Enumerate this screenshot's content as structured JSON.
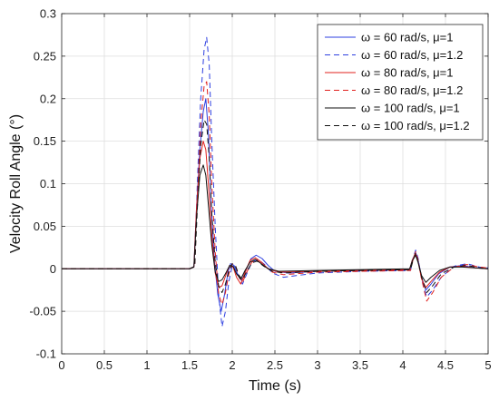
{
  "chart_data": {
    "type": "line",
    "title": "",
    "xlabel": "Time (s)",
    "ylabel": "Velocity Roll Angle (°)",
    "xlim": [
      0,
      5
    ],
    "ylim": [
      -0.1,
      0.3
    ],
    "xticks": [
      0,
      0.5,
      1,
      1.5,
      2,
      2.5,
      3,
      3.5,
      4,
      4.5,
      5
    ],
    "yticks": [
      -0.1,
      -0.05,
      0,
      0.05,
      0.1,
      0.15,
      0.2,
      0.25,
      0.3
    ],
    "xtick_labels": [
      "0",
      "0.5",
      "1",
      "1.5",
      "2",
      "2.5",
      "3",
      "3.5",
      "4",
      "4.5",
      "5"
    ],
    "ytick_labels": [
      "-0.1",
      "-0.05",
      "0",
      "0.05",
      "0.1",
      "0.15",
      "0.2",
      "0.25",
      "0.3"
    ],
    "grid": true,
    "legend_position": "top-right",
    "series": [
      {
        "name": "ω = 60 rad/s, μ=1",
        "color": "#2d3fe0",
        "dash": "solid",
        "points": [
          [
            0,
            0
          ],
          [
            1.5,
            0
          ],
          [
            1.55,
            0.002
          ],
          [
            1.58,
            0.07
          ],
          [
            1.62,
            0.14
          ],
          [
            1.66,
            0.185
          ],
          [
            1.69,
            0.2
          ],
          [
            1.72,
            0.16
          ],
          [
            1.75,
            0.08
          ],
          [
            1.79,
            0.01
          ],
          [
            1.83,
            -0.03
          ],
          [
            1.87,
            -0.05
          ],
          [
            1.91,
            -0.03
          ],
          [
            1.95,
            -0.004
          ],
          [
            1.98,
            0.006
          ],
          [
            2.02,
            0.004
          ],
          [
            2.07,
            -0.008
          ],
          [
            2.11,
            -0.014
          ],
          [
            2.16,
            -0.002
          ],
          [
            2.22,
            0.012
          ],
          [
            2.28,
            0.016
          ],
          [
            2.35,
            0.012
          ],
          [
            2.42,
            0.004
          ],
          [
            2.5,
            -0.003
          ],
          [
            2.65,
            -0.005
          ],
          [
            3.0,
            -0.003
          ],
          [
            3.5,
            -0.002
          ],
          [
            4.08,
            -0.001
          ],
          [
            4.11,
            0.01
          ],
          [
            4.15,
            0.019
          ],
          [
            4.18,
            0.01
          ],
          [
            4.22,
            -0.01
          ],
          [
            4.27,
            -0.025
          ],
          [
            4.33,
            -0.018
          ],
          [
            4.42,
            -0.006
          ],
          [
            4.55,
            0.002
          ],
          [
            4.7,
            0.004
          ],
          [
            4.85,
            0.001
          ],
          [
            5,
            0
          ]
        ]
      },
      {
        "name": "ω = 60 rad/s, μ=1.2",
        "color": "#2d3fe0",
        "dash": "dashed",
        "points": [
          [
            0,
            0
          ],
          [
            1.5,
            0
          ],
          [
            1.56,
            0.003
          ],
          [
            1.59,
            0.1
          ],
          [
            1.63,
            0.2
          ],
          [
            1.67,
            0.258
          ],
          [
            1.7,
            0.272
          ],
          [
            1.73,
            0.24
          ],
          [
            1.76,
            0.15
          ],
          [
            1.8,
            0.05
          ],
          [
            1.84,
            -0.03
          ],
          [
            1.88,
            -0.068
          ],
          [
            1.92,
            -0.05
          ],
          [
            1.96,
            -0.015
          ],
          [
            2.0,
            0.004
          ],
          [
            2.04,
            0.002
          ],
          [
            2.08,
            -0.01
          ],
          [
            2.12,
            -0.018
          ],
          [
            2.17,
            -0.006
          ],
          [
            2.23,
            0.008
          ],
          [
            2.3,
            0.011
          ],
          [
            2.38,
            0.005
          ],
          [
            2.47,
            -0.005
          ],
          [
            2.6,
            -0.01
          ],
          [
            2.75,
            -0.008
          ],
          [
            3.0,
            -0.005
          ],
          [
            3.5,
            -0.003
          ],
          [
            4.09,
            -0.002
          ],
          [
            4.12,
            0.012
          ],
          [
            4.15,
            0.022
          ],
          [
            4.18,
            0.012
          ],
          [
            4.22,
            -0.012
          ],
          [
            4.28,
            -0.033
          ],
          [
            4.35,
            -0.025
          ],
          [
            4.45,
            -0.01
          ],
          [
            4.6,
            0.003
          ],
          [
            4.75,
            0.006
          ],
          [
            4.9,
            0.002
          ],
          [
            5,
            0.001
          ]
        ]
      },
      {
        "name": "ω = 80 rad/s, μ=1",
        "color": "#e0201d",
        "dash": "solid",
        "points": [
          [
            0,
            0
          ],
          [
            1.5,
            0
          ],
          [
            1.55,
            0.002
          ],
          [
            1.58,
            0.07
          ],
          [
            1.62,
            0.13
          ],
          [
            1.66,
            0.15
          ],
          [
            1.69,
            0.14
          ],
          [
            1.72,
            0.1
          ],
          [
            1.76,
            0.04
          ],
          [
            1.8,
            -0.005
          ],
          [
            1.84,
            -0.022
          ],
          [
            1.88,
            -0.02
          ],
          [
            1.93,
            -0.006
          ],
          [
            1.97,
            0.004
          ],
          [
            2.01,
            0.002
          ],
          [
            2.05,
            -0.01
          ],
          [
            2.1,
            -0.018
          ],
          [
            2.15,
            -0.004
          ],
          [
            2.21,
            0.01
          ],
          [
            2.27,
            0.013
          ],
          [
            2.34,
            0.008
          ],
          [
            2.42,
            0.0
          ],
          [
            2.55,
            -0.004
          ],
          [
            3.0,
            -0.003
          ],
          [
            3.5,
            -0.002
          ],
          [
            4.08,
            -0.001
          ],
          [
            4.11,
            0.01
          ],
          [
            4.15,
            0.018
          ],
          [
            4.18,
            0.008
          ],
          [
            4.22,
            -0.012
          ],
          [
            4.27,
            -0.022
          ],
          [
            4.33,
            -0.015
          ],
          [
            4.43,
            -0.004
          ],
          [
            4.55,
            0.002
          ],
          [
            4.7,
            0.003
          ],
          [
            4.85,
            0.001
          ],
          [
            5,
            0
          ]
        ]
      },
      {
        "name": "ω = 80 rad/s, μ=1.2",
        "color": "#e0201d",
        "dash": "dashed",
        "points": [
          [
            0,
            0
          ],
          [
            1.5,
            0
          ],
          [
            1.56,
            0.003
          ],
          [
            1.59,
            0.08
          ],
          [
            1.63,
            0.17
          ],
          [
            1.67,
            0.215
          ],
          [
            1.7,
            0.22
          ],
          [
            1.73,
            0.18
          ],
          [
            1.76,
            0.1
          ],
          [
            1.8,
            0.02
          ],
          [
            1.84,
            -0.03
          ],
          [
            1.88,
            -0.042
          ],
          [
            1.92,
            -0.028
          ],
          [
            1.96,
            -0.006
          ],
          [
            2.0,
            0.006
          ],
          [
            2.04,
            0.003
          ],
          [
            2.08,
            -0.01
          ],
          [
            2.12,
            -0.016
          ],
          [
            2.17,
            -0.004
          ],
          [
            2.23,
            0.008
          ],
          [
            2.29,
            0.01
          ],
          [
            2.37,
            0.004
          ],
          [
            2.47,
            -0.004
          ],
          [
            2.6,
            -0.007
          ],
          [
            3.0,
            -0.004
          ],
          [
            3.5,
            -0.003
          ],
          [
            4.09,
            -0.002
          ],
          [
            4.12,
            0.011
          ],
          [
            4.15,
            0.02
          ],
          [
            4.18,
            0.01
          ],
          [
            4.22,
            -0.012
          ],
          [
            4.28,
            -0.038
          ],
          [
            4.35,
            -0.028
          ],
          [
            4.45,
            -0.01
          ],
          [
            4.6,
            0.002
          ],
          [
            4.75,
            0.005
          ],
          [
            4.9,
            0.002
          ],
          [
            5,
            0.001
          ]
        ]
      },
      {
        "name": "ω = 100 rad/s, μ=1",
        "color": "#111111",
        "dash": "solid",
        "points": [
          [
            0,
            0
          ],
          [
            1.5,
            0
          ],
          [
            1.55,
            0.002
          ],
          [
            1.58,
            0.06
          ],
          [
            1.62,
            0.11
          ],
          [
            1.66,
            0.122
          ],
          [
            1.69,
            0.11
          ],
          [
            1.72,
            0.075
          ],
          [
            1.76,
            0.028
          ],
          [
            1.8,
            -0.004
          ],
          [
            1.84,
            -0.015
          ],
          [
            1.88,
            -0.013
          ],
          [
            1.93,
            -0.004
          ],
          [
            1.97,
            0.004
          ],
          [
            2.01,
            0.003
          ],
          [
            2.05,
            -0.006
          ],
          [
            2.1,
            -0.012
          ],
          [
            2.15,
            -0.002
          ],
          [
            2.21,
            0.008
          ],
          [
            2.27,
            0.011
          ],
          [
            2.34,
            0.006
          ],
          [
            2.42,
            0.0
          ],
          [
            2.55,
            -0.003
          ],
          [
            3.0,
            -0.002
          ],
          [
            3.5,
            -0.001
          ],
          [
            4.08,
            0
          ],
          [
            4.11,
            0.009
          ],
          [
            4.15,
            0.016
          ],
          [
            4.18,
            0.007
          ],
          [
            4.22,
            -0.008
          ],
          [
            4.27,
            -0.016
          ],
          [
            4.33,
            -0.01
          ],
          [
            4.43,
            -0.002
          ],
          [
            4.55,
            0.002
          ],
          [
            4.7,
            0.002
          ],
          [
            4.85,
            0.001
          ],
          [
            5,
            0
          ]
        ]
      },
      {
        "name": "ω = 100 rad/s, μ=1.2",
        "color": "#111111",
        "dash": "dashed",
        "points": [
          [
            0,
            0
          ],
          [
            1.5,
            0
          ],
          [
            1.56,
            0.003
          ],
          [
            1.59,
            0.07
          ],
          [
            1.63,
            0.145
          ],
          [
            1.67,
            0.175
          ],
          [
            1.7,
            0.17
          ],
          [
            1.73,
            0.13
          ],
          [
            1.76,
            0.065
          ],
          [
            1.8,
            0.008
          ],
          [
            1.84,
            -0.02
          ],
          [
            1.88,
            -0.028
          ],
          [
            1.92,
            -0.018
          ],
          [
            1.96,
            -0.003
          ],
          [
            2.0,
            0.006
          ],
          [
            2.04,
            0.003
          ],
          [
            2.08,
            -0.008
          ],
          [
            2.12,
            -0.013
          ],
          [
            2.17,
            -0.003
          ],
          [
            2.23,
            0.007
          ],
          [
            2.29,
            0.009
          ],
          [
            2.37,
            0.003
          ],
          [
            2.47,
            -0.003
          ],
          [
            2.6,
            -0.005
          ],
          [
            3.0,
            -0.003
          ],
          [
            3.5,
            -0.002
          ],
          [
            4.09,
            -0.001
          ],
          [
            4.12,
            0.01
          ],
          [
            4.15,
            0.018
          ],
          [
            4.18,
            0.008
          ],
          [
            4.22,
            -0.01
          ],
          [
            4.28,
            -0.028
          ],
          [
            4.35,
            -0.02
          ],
          [
            4.45,
            -0.006
          ],
          [
            4.6,
            0.002
          ],
          [
            4.75,
            0.004
          ],
          [
            4.9,
            0.001
          ],
          [
            5,
            0
          ]
        ]
      }
    ]
  }
}
